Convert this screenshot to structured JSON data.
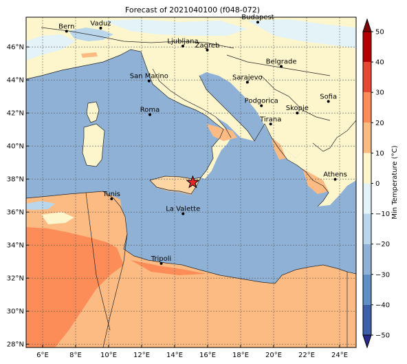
{
  "title": "Forecast of 2021040100 (f048-072)",
  "map": {
    "lon_range": [
      5,
      25
    ],
    "lat_range": [
      27.8,
      47.8
    ],
    "x_ticks": [
      {
        "value": 6,
        "label": "6°E"
      },
      {
        "value": 8,
        "label": "8°E"
      },
      {
        "value": 10,
        "label": "10°E"
      },
      {
        "value": 12,
        "label": "12°E"
      },
      {
        "value": 14,
        "label": "14°E"
      },
      {
        "value": 16,
        "label": "16°E"
      },
      {
        "value": 18,
        "label": "18°E"
      },
      {
        "value": 20,
        "label": "20°E"
      },
      {
        "value": 22,
        "label": "22°E"
      },
      {
        "value": 24,
        "label": "24°E"
      }
    ],
    "y_ticks": [
      {
        "value": 28,
        "label": "28°N"
      },
      {
        "value": 30,
        "label": "30°N"
      },
      {
        "value": 32,
        "label": "32°N"
      },
      {
        "value": 34,
        "label": "34°N"
      },
      {
        "value": 36,
        "label": "36°N"
      },
      {
        "value": 38,
        "label": "38°N"
      },
      {
        "value": 40,
        "label": "40°N"
      },
      {
        "value": 42,
        "label": "42°N"
      },
      {
        "value": 44,
        "label": "44°N"
      },
      {
        "value": 46,
        "label": "46°N"
      }
    ],
    "grid": true,
    "sea_color": "#8fb1d6",
    "land_color": "#fdf5cc",
    "cities": [
      {
        "name": "Bern",
        "lon": 7.45,
        "lat": 46.95
      },
      {
        "name": "Vaduz",
        "lon": 9.52,
        "lat": 47.14
      },
      {
        "name": "Budapest",
        "lon": 19.04,
        "lat": 47.5
      },
      {
        "name": "Ljubljana",
        "lon": 14.5,
        "lat": 46.05
      },
      {
        "name": "Zagreb",
        "lon": 15.98,
        "lat": 45.81
      },
      {
        "name": "Belgrade",
        "lon": 20.46,
        "lat": 44.82
      },
      {
        "name": "San Marino",
        "lon": 12.45,
        "lat": 43.94
      },
      {
        "name": "Sarajevo",
        "lon": 18.41,
        "lat": 43.86
      },
      {
        "name": "Sofia",
        "lon": 23.32,
        "lat": 42.7
      },
      {
        "name": "Podgorica",
        "lon": 19.26,
        "lat": 42.44
      },
      {
        "name": "Skopje",
        "lon": 21.43,
        "lat": 42.0
      },
      {
        "name": "Roma",
        "lon": 12.5,
        "lat": 41.9
      },
      {
        "name": "Tirana",
        "lon": 19.82,
        "lat": 41.33
      },
      {
        "name": "Athens",
        "lon": 23.73,
        "lat": 37.98
      },
      {
        "name": "Tunis",
        "lon": 10.18,
        "lat": 36.8
      },
      {
        "name": "La Valette",
        "lon": 14.51,
        "lat": 35.9
      },
      {
        "name": "Tripoli",
        "lon": 13.19,
        "lat": 32.89
      }
    ],
    "marker": {
      "type": "star",
      "lon": 15.1,
      "lat": 37.8,
      "color": "#e8262a"
    }
  },
  "colorbar": {
    "label": "Min Temperature (°C)",
    "min": -50,
    "max": 50,
    "step": 10,
    "tick_labels": [
      "50",
      "40",
      "30",
      "20",
      "10",
      "0",
      "−10",
      "−20",
      "−30",
      "−40",
      "−50"
    ],
    "colors": [
      "#2a2a8c",
      "#3e5fa8",
      "#5f8fc4",
      "#8fb1d6",
      "#bad6ea",
      "#e3f3f8",
      "#fdf5cc",
      "#fdbb84",
      "#fc8d59",
      "#e34a33",
      "#b30000",
      "#7f0000"
    ]
  }
}
